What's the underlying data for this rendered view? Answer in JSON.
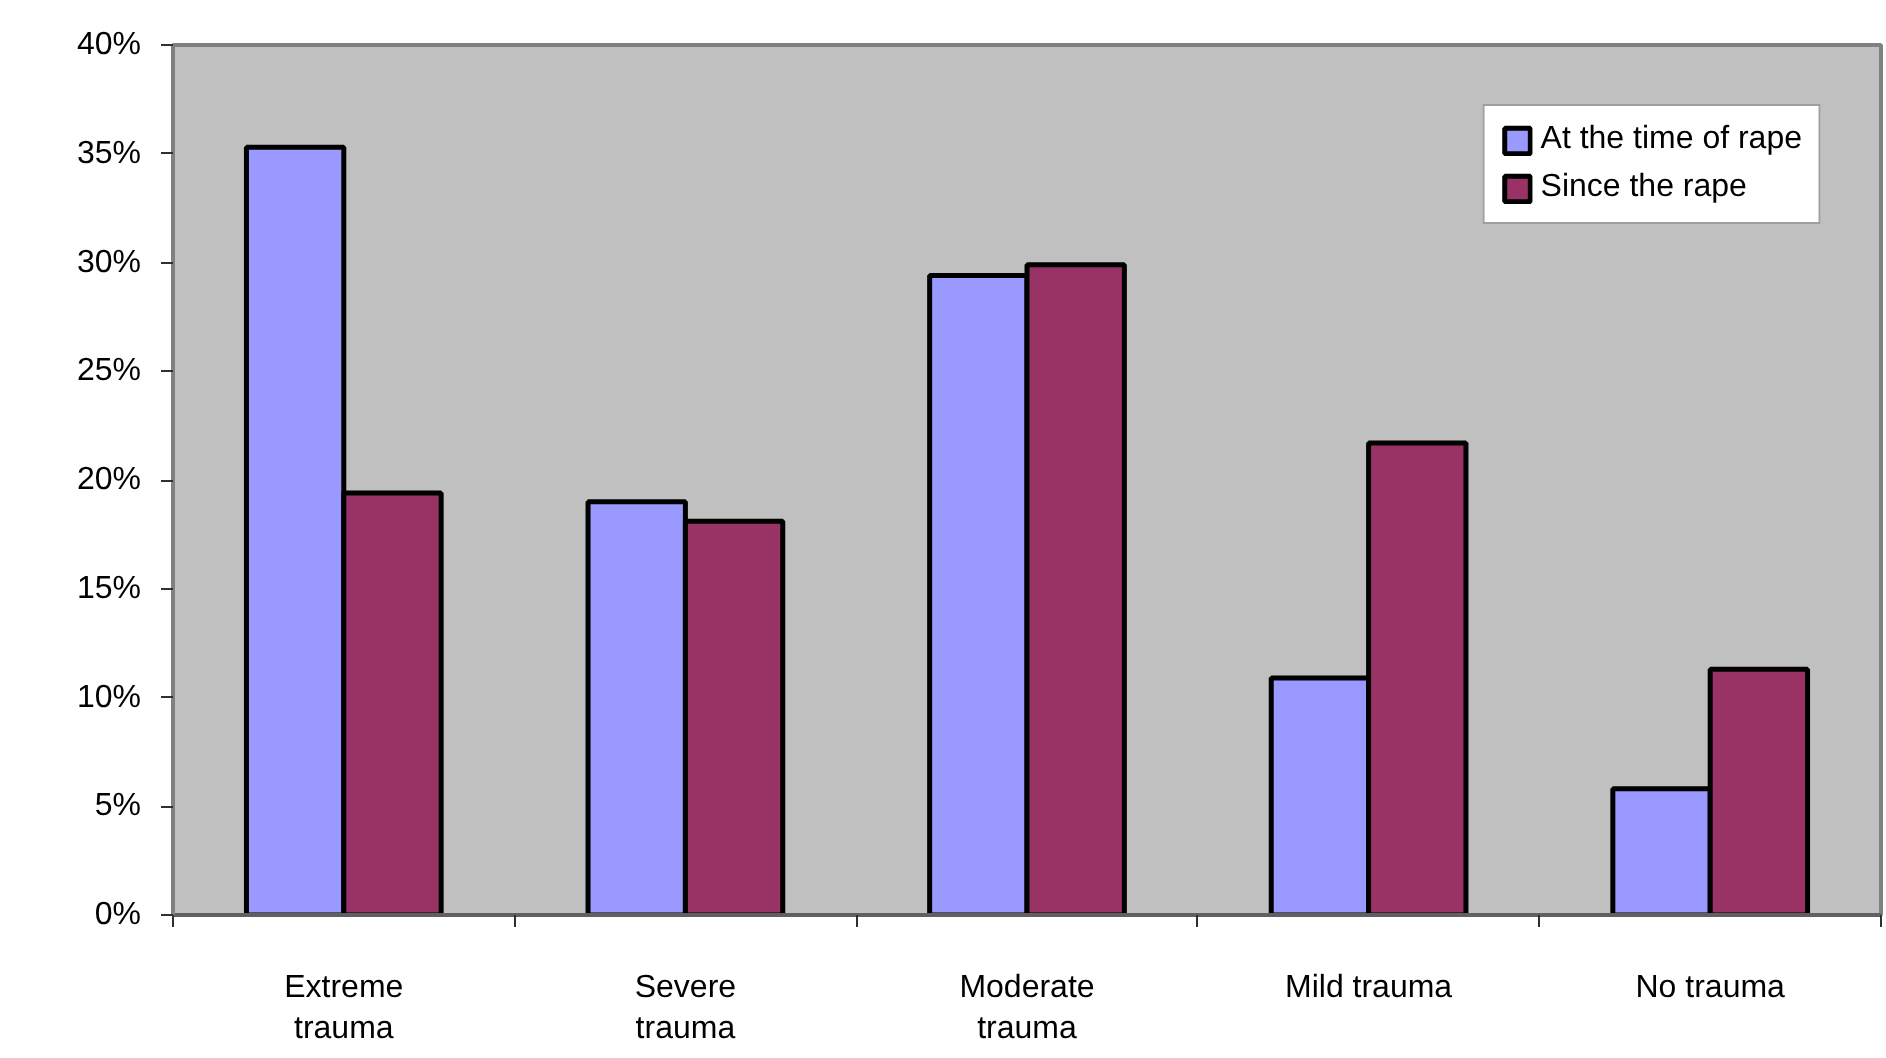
{
  "chart_data": {
    "type": "bar",
    "categories": [
      "Extreme trauma",
      "Severe trauma",
      "Moderate trauma",
      "Mild trauma",
      "No trauma"
    ],
    "series": [
      {
        "name": "At the time of rape",
        "color": "#9999ff",
        "values": [
          35.3,
          19.0,
          29.4,
          10.9,
          5.8
        ]
      },
      {
        "name": "Since the rape",
        "color": "#993366",
        "values": [
          19.4,
          18.1,
          29.9,
          21.7,
          11.3
        ]
      }
    ],
    "ylim": [
      0,
      40
    ],
    "yticks": [
      {
        "value": 0,
        "label": "0%"
      },
      {
        "value": 5,
        "label": "5%"
      },
      {
        "value": 10,
        "label": "10%"
      },
      {
        "value": 15,
        "label": "15%"
      },
      {
        "value": 20,
        "label": "20%"
      },
      {
        "value": 25,
        "label": "25%"
      },
      {
        "value": 30,
        "label": "30%"
      },
      {
        "value": 35,
        "label": "35%"
      },
      {
        "value": 40,
        "label": "40%"
      }
    ],
    "grid": false,
    "legend": "top right"
  }
}
